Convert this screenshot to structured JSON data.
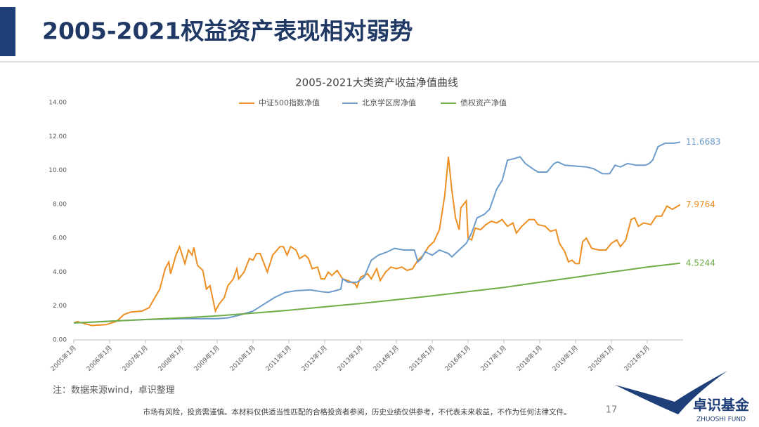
{
  "slide": {
    "title": "2005-2021权益资产表现相对弱势",
    "note": "注：数据来源wind，卓识整理",
    "disclaimer": "市场有风险，投资需谨慎。本材料仅供适当性匹配的合格投资者参阅，历史业绩仅供参考，不代表未来收益，不作为任何法律文件。",
    "page": "17",
    "logo": "卓识基金",
    "logo_en": "ZHUOSHI FUND"
  },
  "chart_data": {
    "type": "line",
    "title": "2005-2021大类资产收益净值曲线",
    "xlim": [
      2005,
      2022
    ],
    "ylim": [
      0,
      14
    ],
    "xticks": [
      {
        "value": 2005,
        "label": "2005年1月"
      },
      {
        "value": 2006,
        "label": "2006年1月"
      },
      {
        "value": 2007,
        "label": "2007年1月"
      },
      {
        "value": 2008,
        "label": "2008年1月"
      },
      {
        "value": 2009,
        "label": "2009年1月"
      },
      {
        "value": 2010,
        "label": "2010年1月"
      },
      {
        "value": 2011,
        "label": "2011年1月"
      },
      {
        "value": 2012,
        "label": "2012年1月"
      },
      {
        "value": 2013,
        "label": "2013年1月"
      },
      {
        "value": 2014,
        "label": "2014年1月"
      },
      {
        "value": 2015,
        "label": "2015年1月"
      },
      {
        "value": 2016,
        "label": "2016年1月"
      },
      {
        "value": 2017,
        "label": "2017年1月"
      },
      {
        "value": 2018,
        "label": "2018年1月"
      },
      {
        "value": 2019,
        "label": "2019年1月"
      },
      {
        "value": 2020,
        "label": "2020年1月"
      },
      {
        "value": 2021,
        "label": "2021年1月"
      }
    ],
    "yticks": [
      {
        "value": 0,
        "label": "0.00"
      },
      {
        "value": 2,
        "label": "2.00"
      },
      {
        "value": 4,
        "label": "4.00"
      },
      {
        "value": 6,
        "label": "6.00"
      },
      {
        "value": 8,
        "label": "8.00"
      },
      {
        "value": 10,
        "label": "10.00"
      },
      {
        "value": 12,
        "label": "12.00"
      },
      {
        "value": 14,
        "label": "14.00"
      }
    ],
    "legend": "top",
    "series": [
      {
        "name": "中证500指数净值",
        "color": "#ed8f22",
        "end_label": "7.9764",
        "x": [
          2005.0,
          2005.1,
          2005.5,
          2005.9,
          2006.2,
          2006.4,
          2006.6,
          2006.9,
          2007.1,
          2007.4,
          2007.55,
          2007.65,
          2007.7,
          2007.85,
          2007.95,
          2008.1,
          2008.2,
          2008.3,
          2008.35,
          2008.45,
          2008.6,
          2008.7,
          2008.8,
          2008.9,
          2008.95,
          2009.05,
          2009.2,
          2009.3,
          2009.45,
          2009.55,
          2009.6,
          2009.75,
          2009.9,
          2010.0,
          2010.1,
          2010.2,
          2010.4,
          2010.55,
          2010.75,
          2010.85,
          2010.95,
          2011.05,
          2011.2,
          2011.3,
          2011.45,
          2011.55,
          2011.65,
          2011.8,
          2011.9,
          2012.0,
          2012.1,
          2012.2,
          2012.35,
          2012.5,
          2012.65,
          2012.85,
          2012.9,
          2013.0,
          2013.2,
          2013.3,
          2013.45,
          2013.55,
          2013.7,
          2013.85,
          2014.0,
          2014.15,
          2014.3,
          2014.45,
          2014.6,
          2014.75,
          2014.9,
          2015.05,
          2015.2,
          2015.35,
          2015.45,
          2015.55,
          2015.65,
          2015.75,
          2015.8,
          2015.95,
          2016.0,
          2016.1,
          2016.2,
          2016.35,
          2016.5,
          2016.65,
          2016.8,
          2016.95,
          2017.1,
          2017.25,
          2017.35,
          2017.5,
          2017.7,
          2017.85,
          2017.95,
          2018.15,
          2018.3,
          2018.45,
          2018.55,
          2018.7,
          2018.8,
          2018.9,
          2019.0,
          2019.1,
          2019.2,
          2019.3,
          2019.45,
          2019.65,
          2019.85,
          2020.0,
          2020.15,
          2020.25,
          2020.4,
          2020.55,
          2020.65,
          2020.75,
          2020.9,
          2021.1,
          2021.25,
          2021.4,
          2021.55,
          2021.7,
          2021.92
        ],
        "values": [
          1.0,
          1.08,
          0.85,
          0.9,
          1.1,
          1.5,
          1.65,
          1.7,
          1.9,
          3.0,
          4.2,
          4.6,
          3.9,
          5.0,
          5.5,
          4.5,
          5.3,
          5.0,
          5.45,
          4.4,
          4.1,
          3.0,
          3.2,
          2.2,
          1.7,
          2.1,
          2.5,
          3.2,
          3.6,
          4.2,
          3.6,
          4.0,
          4.8,
          4.7,
          5.1,
          5.1,
          4.0,
          5.0,
          5.5,
          5.5,
          5.0,
          5.5,
          5.3,
          4.8,
          5.0,
          4.8,
          4.2,
          4.3,
          3.6,
          3.6,
          4.0,
          3.8,
          4.1,
          3.6,
          3.5,
          3.3,
          3.1,
          3.7,
          3.9,
          3.6,
          4.2,
          3.5,
          4.0,
          4.3,
          4.2,
          4.3,
          4.1,
          4.2,
          4.7,
          5.0,
          5.5,
          5.8,
          6.5,
          8.5,
          10.8,
          8.8,
          7.2,
          6.5,
          7.8,
          8.2,
          6.0,
          5.9,
          6.6,
          6.5,
          6.8,
          7.0,
          6.9,
          7.1,
          6.7,
          6.9,
          6.3,
          6.7,
          7.1,
          7.1,
          6.8,
          6.7,
          6.4,
          6.5,
          5.7,
          5.2,
          4.6,
          4.7,
          4.5,
          4.5,
          5.8,
          6.0,
          5.4,
          5.3,
          5.3,
          5.7,
          5.9,
          5.5,
          5.9,
          7.1,
          7.2,
          6.7,
          6.9,
          6.8,
          7.3,
          7.3,
          7.9,
          7.7,
          7.9764
        ]
      },
      {
        "name": "北京学区房净值",
        "color": "#6b9ccb",
        "end_label": "11.6683",
        "x": [
          2005.0,
          2006.0,
          2007.0,
          2008.0,
          2009.0,
          2009.3,
          2009.6,
          2010.0,
          2010.3,
          2010.6,
          2010.9,
          2011.2,
          2011.6,
          2011.9,
          2012.1,
          2012.3,
          2012.45,
          2012.5,
          2012.65,
          2012.9,
          2013.1,
          2013.3,
          2013.5,
          2013.75,
          2013.95,
          2014.2,
          2014.5,
          2014.6,
          2014.7,
          2014.8,
          2015.0,
          2015.2,
          2015.45,
          2015.55,
          2015.75,
          2015.95,
          2016.1,
          2016.25,
          2016.45,
          2016.6,
          2016.8,
          2016.95,
          2017.1,
          2017.3,
          2017.45,
          2017.6,
          2017.8,
          2017.95,
          2018.2,
          2018.4,
          2018.5,
          2018.7,
          2019.0,
          2019.3,
          2019.5,
          2019.75,
          2019.95,
          2020.1,
          2020.25,
          2020.45,
          2020.7,
          2020.95,
          2021.05,
          2021.15,
          2021.3,
          2021.5,
          2021.75,
          2021.92
        ],
        "values": [
          1.0,
          1.1,
          1.2,
          1.25,
          1.25,
          1.3,
          1.45,
          1.7,
          2.1,
          2.5,
          2.8,
          2.9,
          2.95,
          2.85,
          2.8,
          2.9,
          3.0,
          3.6,
          3.4,
          3.4,
          3.7,
          4.7,
          5.0,
          5.2,
          5.4,
          5.3,
          5.3,
          4.6,
          4.8,
          5.2,
          5.0,
          5.3,
          5.1,
          4.9,
          5.3,
          5.7,
          6.3,
          7.2,
          7.4,
          7.7,
          8.9,
          9.4,
          10.6,
          10.7,
          10.8,
          10.4,
          10.1,
          9.9,
          9.9,
          10.4,
          10.5,
          10.3,
          10.25,
          10.2,
          10.1,
          9.8,
          9.8,
          10.3,
          10.2,
          10.4,
          10.3,
          10.3,
          10.4,
          10.6,
          11.4,
          11.6,
          11.6,
          11.6683
        ]
      },
      {
        "name": "债权资产净值",
        "color": "#70ad47",
        "end_label": "4.5244",
        "x": [
          2005.0,
          2006.0,
          2007.0,
          2008.0,
          2009.0,
          2010.0,
          2011.0,
          2012.0,
          2013.0,
          2014.0,
          2015.0,
          2016.0,
          2017.0,
          2018.0,
          2019.0,
          2020.0,
          2021.0,
          2021.92
        ],
        "values": [
          1.0,
          1.1,
          1.2,
          1.3,
          1.42,
          1.58,
          1.75,
          1.95,
          2.15,
          2.37,
          2.6,
          2.85,
          3.1,
          3.4,
          3.7,
          4.0,
          4.3,
          4.5244
        ]
      }
    ]
  }
}
